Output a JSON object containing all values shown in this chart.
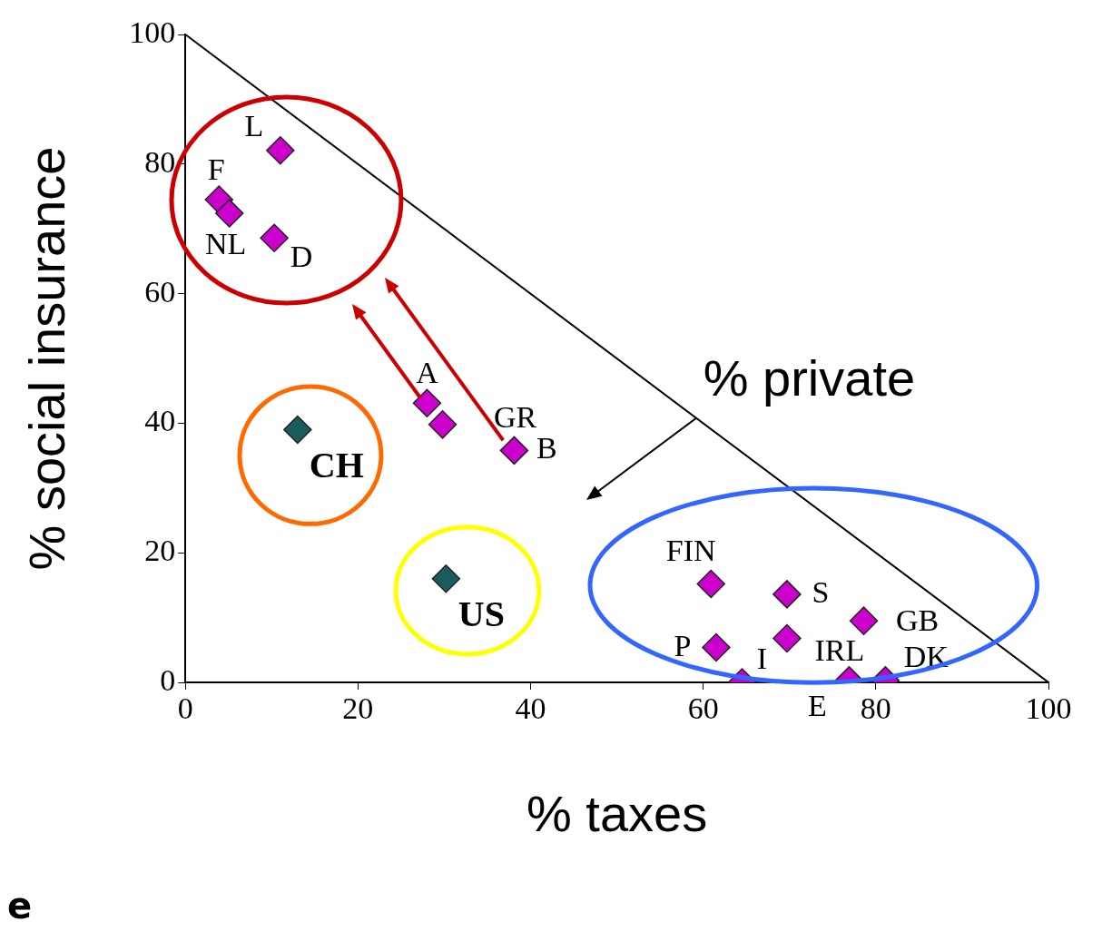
{
  "chart_data": {
    "type": "scatter",
    "xlabel": "% taxes",
    "ylabel": "% social insurance",
    "xlim": [
      0,
      100
    ],
    "ylim": [
      0,
      100
    ],
    "xticks": [
      0,
      20,
      40,
      60,
      80,
      100
    ],
    "yticks": [
      0,
      20,
      40,
      60,
      80,
      100
    ],
    "grid": false,
    "legend": false,
    "series": [
      {
        "type": "line",
        "color": "#000000",
        "marker": "none",
        "x": [
          0,
          100
        ],
        "values": [
          100,
          0
        ]
      },
      {
        "color": "#cc00cc",
        "marker": "diamond",
        "x": [
          11.0,
          3.9,
          5.1,
          10.3,
          28.0,
          29.8,
          38.1,
          60.9,
          69.7,
          78.6,
          61.5,
          69.7,
          64.5,
          76.9,
          81.1
        ],
        "values": [
          82.1,
          74.5,
          72.4,
          68.6,
          43.1,
          39.8,
          35.8,
          15.2,
          13.6,
          9.5,
          5.4,
          6.8,
          0,
          0.3,
          0.3
        ]
      },
      {
        "color": "#1a5c5c",
        "marker": "diamond",
        "x": [
          13.0,
          30.2
        ],
        "values": [
          39.0,
          16.0
        ]
      }
    ],
    "annotations": [
      {
        "text": "L",
        "x": 11.0,
        "y": 82.1
      },
      {
        "text": "F",
        "x": 3.9,
        "y": 74.5
      },
      {
        "text": "NL",
        "x": 5.1,
        "y": 72.4
      },
      {
        "text": "D",
        "x": 10.3,
        "y": 68.6
      },
      {
        "text": "A",
        "x": 28.0,
        "y": 43.1
      },
      {
        "text": "GR",
        "x": 29.8,
        "y": 39.8
      },
      {
        "text": "B",
        "x": 38.1,
        "y": 35.8
      },
      {
        "text": "CH",
        "x": 13.0,
        "y": 39.0
      },
      {
        "text": "US",
        "x": 30.2,
        "y": 16.0
      },
      {
        "text": "FIN",
        "x": 60.9,
        "y": 15.2
      },
      {
        "text": "S",
        "x": 69.7,
        "y": 13.6
      },
      {
        "text": "GB",
        "x": 78.6,
        "y": 9.5
      },
      {
        "text": "P",
        "x": 61.5,
        "y": 5.4
      },
      {
        "text": "IRL",
        "x": 69.7,
        "y": 6.8
      },
      {
        "text": "I",
        "x": 64.5,
        "y": 0
      },
      {
        "text": "E",
        "x": 76.9,
        "y": 0.3
      },
      {
        "text": "DK",
        "x": 81.1,
        "y": 0.3
      },
      "% private",
      "e"
    ]
  }
}
